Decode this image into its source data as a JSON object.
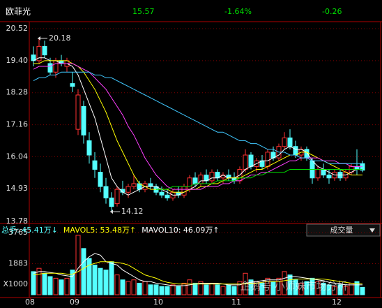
{
  "header": {
    "name": "欧菲光",
    "price": "15.57",
    "change_pct": "-1.64%",
    "change": "-0.26"
  },
  "chart_data": [
    {
      "type": "candlestick",
      "up_color": "#ff3232",
      "down_color": "#54ffff",
      "grid": true,
      "mark_extremes": true,
      "categories": [
        "08",
        null,
        null,
        null,
        null,
        null,
        null,
        null,
        "09",
        null,
        null,
        null,
        null,
        null,
        null,
        null,
        null,
        null,
        null,
        null,
        null,
        null,
        null,
        "10",
        null,
        null,
        null,
        null,
        null,
        null,
        null,
        null,
        null,
        null,
        null,
        null,
        null,
        "11",
        null,
        null,
        null,
        null,
        null,
        null,
        null,
        null,
        null,
        null,
        null,
        null,
        null,
        null,
        null,
        null,
        null,
        "12",
        null,
        null,
        null,
        null
      ],
      "open": [
        19.6,
        19.4,
        19.9,
        19.3,
        19.0,
        19.4,
        19.2,
        18.6,
        17.0,
        17.8,
        16.6,
        15.9,
        15.5,
        15.0,
        14.6,
        14.4,
        14.9,
        14.8,
        15.0,
        15.1,
        14.9,
        15.1,
        15.0,
        14.8,
        14.7,
        14.6,
        14.8,
        14.7,
        14.9,
        15.3,
        15.1,
        15.4,
        15.2,
        15.5,
        15.3,
        15.4,
        15.3,
        15.2,
        15.6,
        16.1,
        15.7,
        15.9,
        15.7,
        16.2,
        16.0,
        16.4,
        16.7,
        16.4,
        16.1,
        16.3,
        15.9,
        15.3,
        15.6,
        15.4,
        15.3,
        15.5,
        15.3,
        15.5,
        15.7,
        15.8
      ],
      "high": [
        19.9,
        20.18,
        20.1,
        19.5,
        19.5,
        19.6,
        19.5,
        19.0,
        18.4,
        18.0,
        16.9,
        16.2,
        15.8,
        15.3,
        14.8,
        15.0,
        15.2,
        15.1,
        15.4,
        15.2,
        15.2,
        15.3,
        15.1,
        15.0,
        14.9,
        14.9,
        15.0,
        15.1,
        15.4,
        15.5,
        15.5,
        15.6,
        15.6,
        15.6,
        15.5,
        15.6,
        15.5,
        15.7,
        16.3,
        16.2,
        16.0,
        16.1,
        16.3,
        16.4,
        16.5,
        16.9,
        17.0,
        16.6,
        16.4,
        16.4,
        16.0,
        15.7,
        15.8,
        15.6,
        15.6,
        15.6,
        15.6,
        15.8,
        16.3,
        15.9
      ],
      "low": [
        19.2,
        19.3,
        19.5,
        18.9,
        18.8,
        19.2,
        19.0,
        18.3,
        16.8,
        16.5,
        15.8,
        15.3,
        14.8,
        14.4,
        14.12,
        14.3,
        14.7,
        14.6,
        14.9,
        14.8,
        14.8,
        14.9,
        14.7,
        14.6,
        14.5,
        14.5,
        14.6,
        14.6,
        14.8,
        15.0,
        15.0,
        15.1,
        15.1,
        15.2,
        15.1,
        15.2,
        15.1,
        15.1,
        15.5,
        15.6,
        15.5,
        15.6,
        15.6,
        15.9,
        15.9,
        16.3,
        16.3,
        16.0,
        15.9,
        15.9,
        15.1,
        15.2,
        15.3,
        15.1,
        15.2,
        15.2,
        15.2,
        15.4,
        15.4,
        15.5
      ],
      "close": [
        19.4,
        19.9,
        19.6,
        19.0,
        19.4,
        19.3,
        19.4,
        18.5,
        18.2,
        16.8,
        16.1,
        15.6,
        15.0,
        14.6,
        14.3,
        14.9,
        14.8,
        15.0,
        15.1,
        14.9,
        15.1,
        15.0,
        14.8,
        14.7,
        14.6,
        14.8,
        14.7,
        15.0,
        15.3,
        15.1,
        15.4,
        15.2,
        15.5,
        15.3,
        15.4,
        15.3,
        15.2,
        15.6,
        16.1,
        15.7,
        15.9,
        15.7,
        16.2,
        16.0,
        16.4,
        16.7,
        16.4,
        16.1,
        16.3,
        16.0,
        15.3,
        15.6,
        15.4,
        15.3,
        15.5,
        15.3,
        15.5,
        15.7,
        15.6,
        15.57
      ],
      "lines": [
        {
          "color": "#ffffff",
          "values": [
            19.4,
            19.5,
            19.5,
            19.4,
            19.4,
            19.3,
            19.3,
            19.2,
            18.9,
            18.4,
            17.9,
            17.4,
            16.7,
            16.0,
            15.3,
            15.0,
            14.8,
            14.7,
            14.8,
            14.9,
            15.0,
            15.0,
            15.0,
            14.9,
            14.8,
            14.7,
            14.7,
            14.8,
            14.9,
            15.0,
            15.2,
            15.2,
            15.3,
            15.3,
            15.4,
            15.3,
            15.3,
            15.4,
            15.6,
            15.7,
            15.8,
            15.9,
            15.9,
            16.0,
            16.1,
            16.3,
            16.4,
            16.3,
            16.3,
            16.2,
            15.9,
            15.7,
            15.6,
            15.5,
            15.4,
            15.4,
            15.4,
            15.5,
            15.6,
            15.6
          ]
        },
        {
          "color": "#ffff00",
          "values": [
            19.3,
            19.3,
            19.4,
            19.4,
            19.4,
            19.4,
            19.4,
            19.3,
            19.2,
            19.0,
            18.7,
            18.4,
            18.0,
            17.6,
            17.1,
            16.6,
            16.2,
            15.8,
            15.4,
            15.1,
            15.0,
            14.9,
            14.9,
            14.9,
            14.9,
            14.8,
            14.8,
            14.8,
            14.9,
            14.9,
            15.0,
            15.0,
            15.1,
            15.1,
            15.2,
            15.3,
            15.3,
            15.3,
            15.4,
            15.5,
            15.6,
            15.6,
            15.7,
            15.8,
            15.9,
            16.0,
            16.1,
            16.1,
            16.2,
            16.2,
            16.1,
            16.0,
            15.9,
            15.8,
            15.7,
            15.6,
            15.5,
            15.4,
            15.4,
            15.4
          ]
        },
        {
          "color": "#ff40ff",
          "values": [
            19.1,
            19.2,
            19.2,
            19.2,
            19.3,
            19.3,
            19.3,
            19.3,
            19.2,
            19.1,
            19.0,
            18.8,
            18.6,
            18.4,
            18.1,
            17.8,
            17.5,
            17.1,
            16.8,
            16.4,
            16.0,
            15.7,
            15.4,
            15.2,
            15.0,
            14.9,
            14.9,
            14.9,
            14.9,
            14.9,
            14.9,
            15.0,
            15.0,
            15.0,
            15.1,
            15.1,
            15.2,
            15.2,
            15.3,
            15.4,
            15.4,
            15.5,
            15.5,
            15.6,
            15.7,
            15.8,
            15.9,
            15.9,
            16.0,
            16.0,
            16.0,
            16.0,
            15.9,
            15.9,
            15.9,
            15.8,
            15.8,
            15.7,
            15.7,
            15.7
          ]
        },
        {
          "color": "#00e000",
          "values": [
            null,
            null,
            null,
            null,
            null,
            null,
            null,
            null,
            null,
            null,
            null,
            null,
            null,
            null,
            null,
            null,
            null,
            null,
            null,
            null,
            null,
            null,
            14.9,
            14.9,
            14.9,
            15.0,
            15.0,
            15.0,
            15.0,
            15.1,
            15.1,
            15.1,
            15.1,
            15.2,
            15.2,
            15.2,
            15.2,
            15.3,
            15.3,
            15.3,
            15.4,
            15.4,
            15.5,
            15.5,
            15.5,
            15.5,
            15.6,
            15.6,
            15.6,
            15.6,
            15.6,
            15.6,
            15.6,
            15.6,
            15.6,
            15.6,
            15.6,
            15.6,
            15.6,
            15.6
          ]
        },
        {
          "color": "#40c8ff",
          "values": [
            18.7,
            18.8,
            18.8,
            18.9,
            18.9,
            19.0,
            19.0,
            19.0,
            19.0,
            19.0,
            19.0,
            18.9,
            18.9,
            18.8,
            18.8,
            18.7,
            18.6,
            18.5,
            18.4,
            18.3,
            18.2,
            18.1,
            18.0,
            17.9,
            17.8,
            17.7,
            17.6,
            17.5,
            17.4,
            17.3,
            17.2,
            17.1,
            17.0,
            16.9,
            16.9,
            16.8,
            16.7,
            16.6,
            16.6,
            16.5,
            16.5,
            16.4,
            16.3,
            16.3,
            16.2,
            16.2,
            16.1,
            16.1,
            16.0,
            16.0,
            15.9,
            15.9,
            15.9,
            15.8,
            15.8,
            15.8,
            15.8,
            15.8,
            15.8,
            15.8
          ]
        }
      ],
      "ylim": [
        13.78,
        20.52
      ],
      "yticks": [
        20.52,
        {
          "value": 19.4,
          "label": "19.40"
        },
        18.28,
        17.16,
        16.04,
        14.93,
        13.78
      ]
    },
    {
      "type": "bar",
      "unit_label": "X1000",
      "selector": "成交量",
      "legend": [
        {
          "text": "总手: 45.41万↓",
          "color": "#54ffff"
        },
        {
          "text": "MAVOL5: 53.48万↑",
          "color": "#ffff00"
        },
        {
          "text": "MAVOL10: 46.09万↑",
          "color": "#ffffff"
        }
      ],
      "values": [
        1400,
        1600,
        1300,
        1100,
        1000,
        900,
        1000,
        1500,
        3600,
        2800,
        2200,
        1800,
        1600,
        1500,
        2000,
        1200,
        900,
        800,
        900,
        700,
        800,
        600,
        600,
        500,
        500,
        600,
        500,
        700,
        900,
        700,
        800,
        600,
        700,
        600,
        500,
        600,
        500,
        800,
        1300,
        900,
        800,
        700,
        1000,
        800,
        1000,
        1400,
        1200,
        900,
        700,
        800,
        1000,
        800,
        700,
        600,
        500,
        600,
        500,
        700,
        800,
        450
      ],
      "lines": [
        {
          "color": "#ffffff",
          "values": [
            1300,
            1400,
            1400,
            1350,
            1300,
            1200,
            1150,
            1100,
            1600,
            2000,
            2300,
            2500,
            2400,
            2000,
            1900,
            1800,
            1500,
            1300,
            1100,
            900,
            800,
            800,
            700,
            650,
            600,
            550,
            550,
            550,
            600,
            650,
            700,
            700,
            700,
            700,
            650,
            600,
            600,
            600,
            700,
            750,
            800,
            850,
            900,
            900,
            900,
            1000,
            1100,
            1100,
            1050,
            1000,
            950,
            900,
            850,
            750,
            700,
            650,
            600,
            600,
            600,
            600
          ]
        },
        {
          "color": "#ffff00",
          "values": [
            1200,
            1250,
            1300,
            1300,
            1300,
            1300,
            1250,
            1250,
            1400,
            1600,
            1800,
            1900,
            2000,
            2000,
            2000,
            1950,
            1900,
            1800,
            1600,
            1400,
            1200,
            1100,
            1000,
            850,
            750,
            700,
            650,
            650,
            650,
            650,
            650,
            650,
            650,
            650,
            650,
            650,
            650,
            650,
            650,
            700,
            700,
            750,
            800,
            800,
            800,
            850,
            900,
            950,
            950,
            950,
            950,
            950,
            950,
            900,
            850,
            800,
            750,
            700,
            680,
            650
          ]
        }
      ],
      "ylim": [
        0,
        3765
      ],
      "yticks": [
        3765,
        1883
      ]
    }
  ],
  "watermark": "企鹅号 小师妹市场分析"
}
